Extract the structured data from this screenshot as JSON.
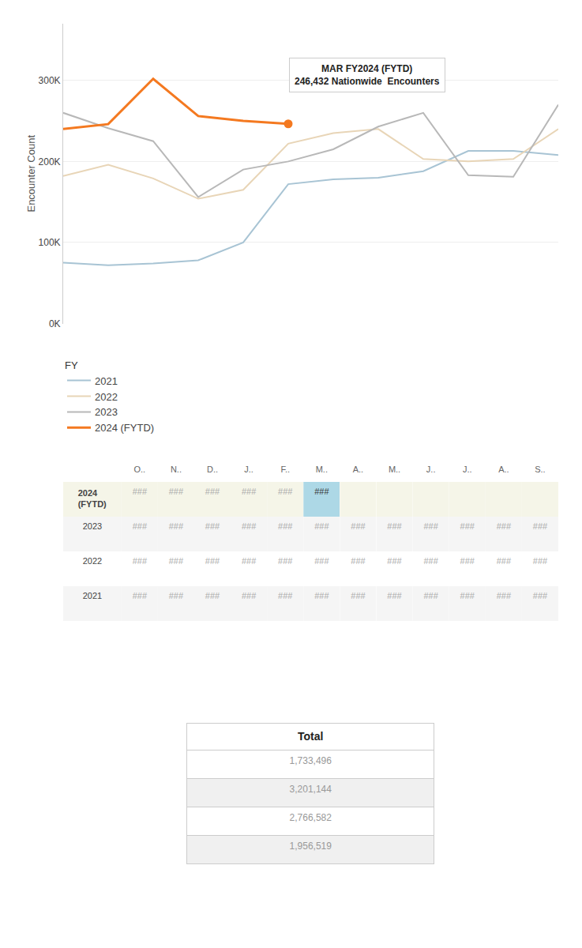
{
  "chart_data": [
    {
      "type": "line",
      "ylabel": "Encounter Count",
      "categories": [
        null,
        null,
        null,
        null,
        null,
        null,
        null,
        null,
        null,
        null,
        null,
        null
      ],
      "ylim": [
        0,
        370000
      ],
      "yticks": [
        {
          "value": 0,
          "label": "0K"
        },
        {
          "value": 100000,
          "label": "100K"
        },
        {
          "value": 200000,
          "label": "200K"
        },
        {
          "value": 300000,
          "label": "300K"
        }
      ],
      "grid": true,
      "tick_labels": "y",
      "legend": "bottom",
      "series": [
        {
          "name": "2021",
          "color": "#a8c4d4",
          "values": [
            75000,
            72000,
            74000,
            78000,
            100000,
            172000,
            178000,
            180000,
            188000,
            213000,
            213000,
            208000
          ]
        },
        {
          "name": "2022",
          "color": "#e8d5b7",
          "values": [
            182000,
            196000,
            179000,
            154000,
            165000,
            222000,
            235000,
            240000,
            203000,
            200000,
            203000,
            240000
          ]
        },
        {
          "name": "2023",
          "color": "#b8b8b8",
          "values": [
            260000,
            241000,
            225000,
            156000,
            190000,
            200000,
            215000,
            243000,
            260000,
            183000,
            181000,
            270000
          ]
        },
        {
          "name": "2024 (FYTD)",
          "color": "#f47920",
          "values": [
            240000,
            246000,
            302000,
            256000,
            250000,
            246432,
            null,
            null,
            null,
            null,
            null,
            null
          ]
        }
      ],
      "annotations": [
        {
          "text": "MAR FY2024 (FYTD)\n246,432 Nationwide  Encounters",
          "x": 5,
          "y": 246432
        }
      ]
    },
    {
      "type": "table",
      "categories": [
        "O..",
        "N..",
        "D..",
        "J..",
        "F..",
        "M..",
        "A..",
        "M..",
        "J..",
        "J..",
        "A..",
        "S.."
      ],
      "series": [
        {
          "name": "2024\n(FYTD)",
          "values": [
            "###",
            "###",
            "###",
            "###",
            "###",
            "###",
            null,
            null,
            null,
            null,
            null,
            null
          ],
          "colors": [
            null,
            null,
            null,
            null,
            null,
            "#add8e6",
            null,
            null,
            null,
            null,
            null,
            null
          ]
        },
        {
          "name": "2023",
          "values": [
            "###",
            "###",
            "###",
            "###",
            "###",
            "###",
            "###",
            "###",
            "###",
            "###",
            "###",
            "###"
          ]
        },
        {
          "name": "2022",
          "values": [
            "###",
            "###",
            "###",
            "###",
            "###",
            "###",
            "###",
            "###",
            "###",
            "###",
            "###",
            "###"
          ]
        },
        {
          "name": "2021",
          "values": [
            "###",
            "###",
            "###",
            "###",
            "###",
            "###",
            "###",
            "###",
            "###",
            "###",
            "###",
            "###"
          ]
        }
      ]
    },
    {
      "type": "table",
      "title": "Total",
      "values": [
        1733496,
        3201144,
        2766582,
        1956519
      ],
      "value_labels": [
        "1,733,496",
        "3,201,144",
        "2,766,582",
        "1,956,519"
      ]
    }
  ]
}
